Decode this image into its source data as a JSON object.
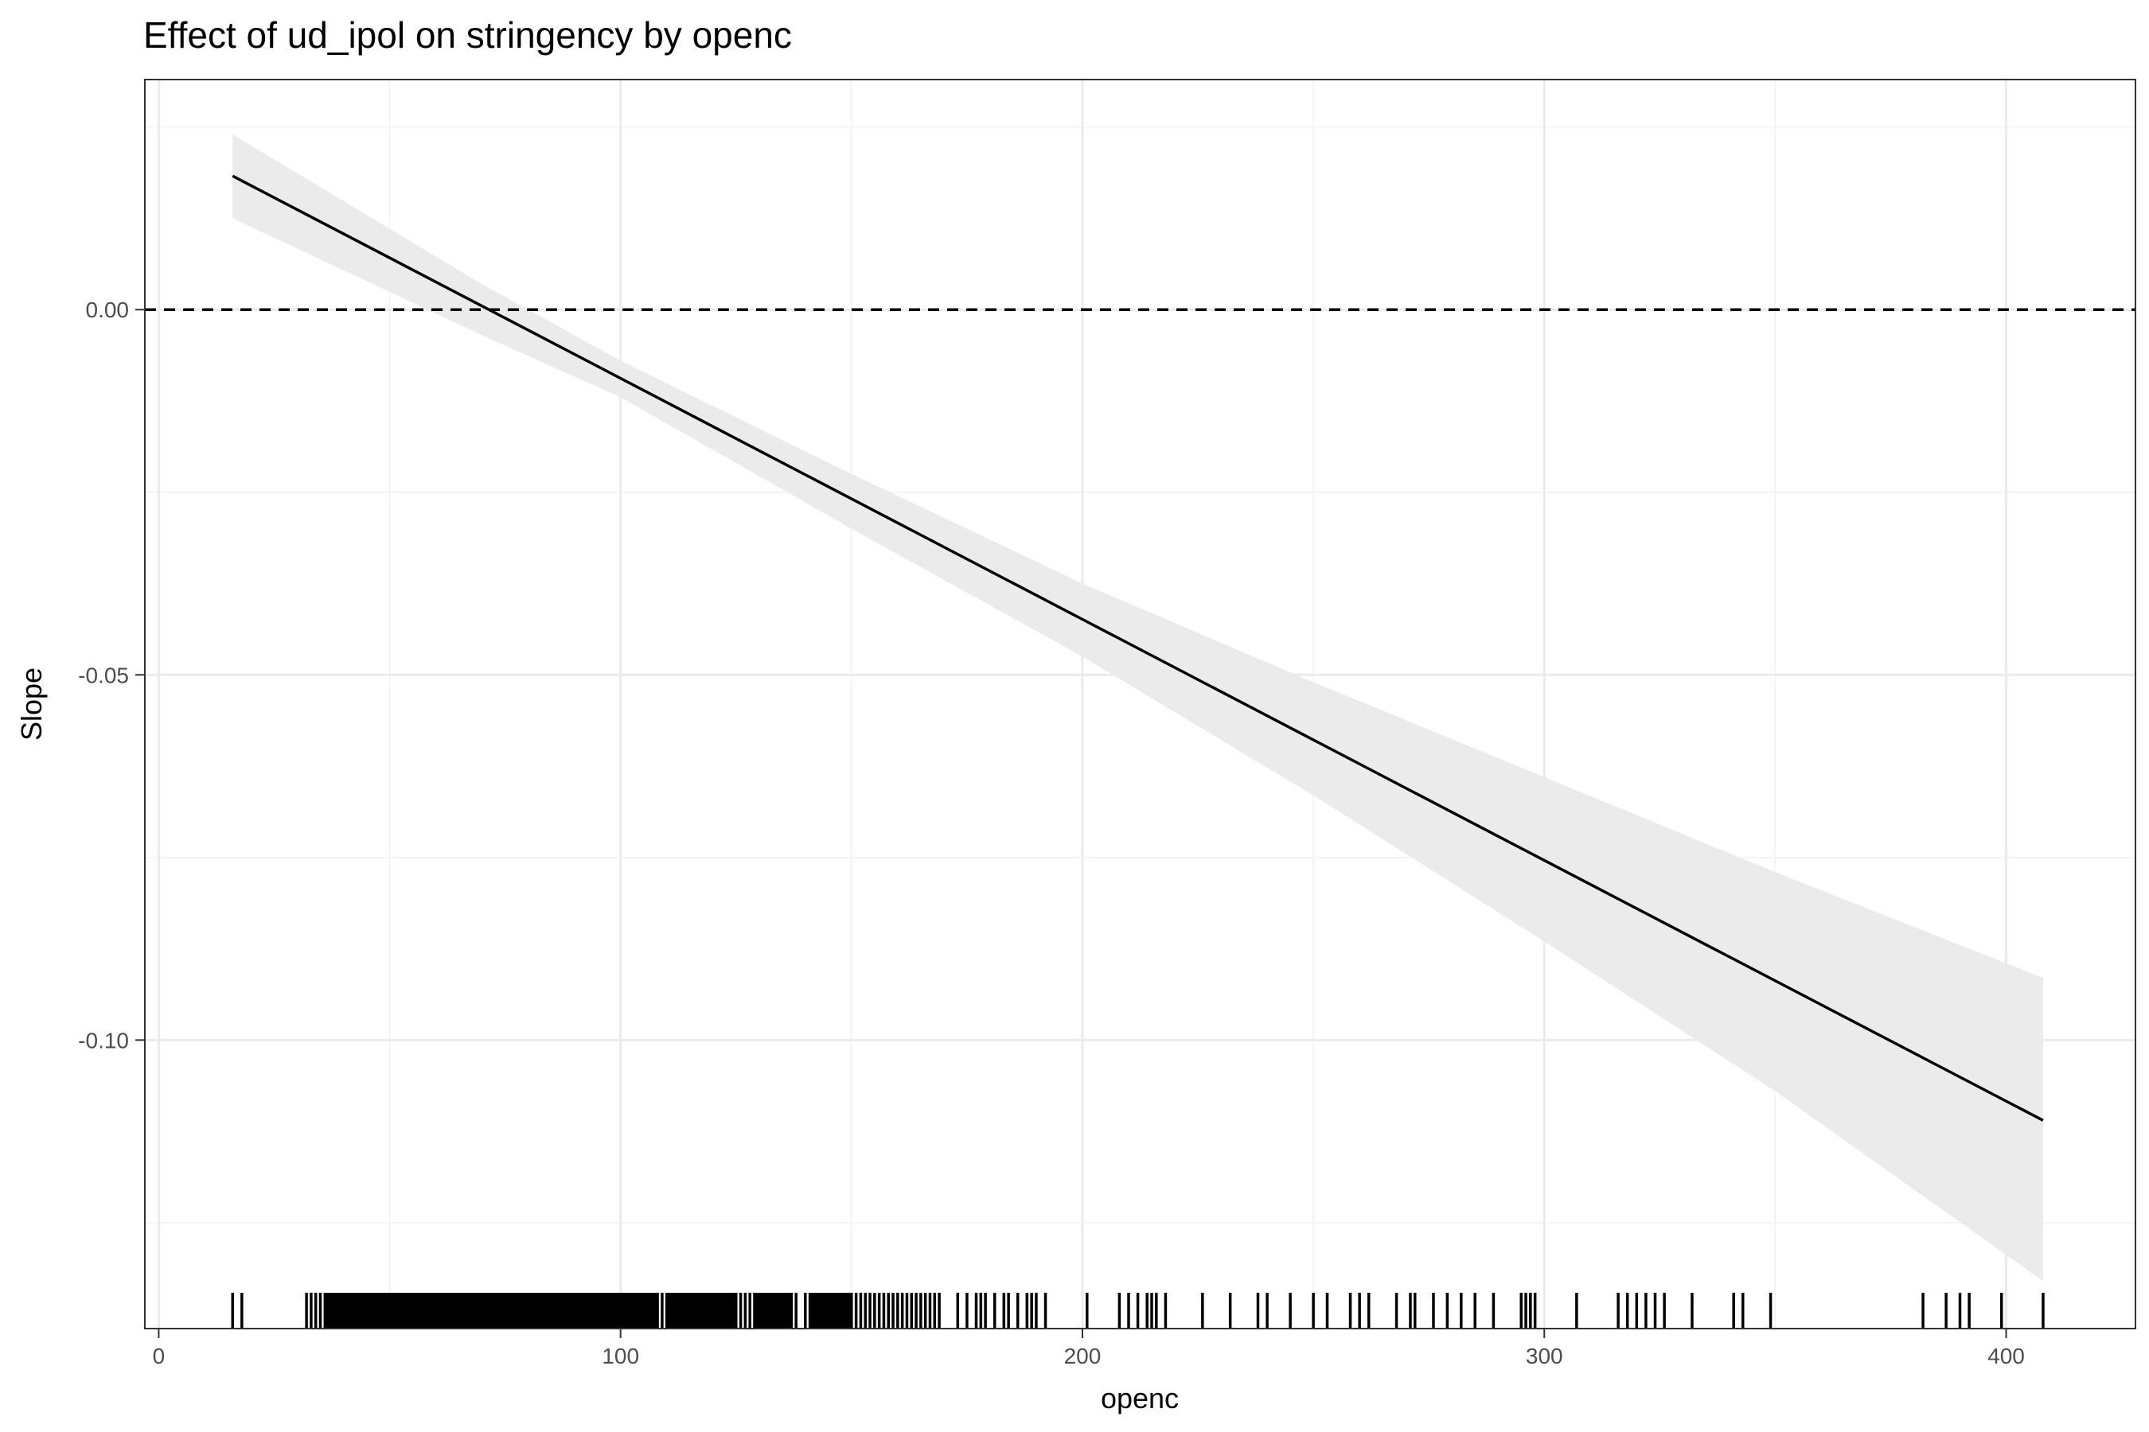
{
  "chart_data": {
    "type": "line",
    "title": "Effect of ud_ipol on stringency by openc",
    "xlabel": "openc",
    "ylabel": "Slope",
    "xlim": [
      -3,
      428
    ],
    "ylim": [
      -0.1395,
      0.0315
    ],
    "x_ticks": [
      0,
      100,
      200,
      300,
      400
    ],
    "x_tick_labels": [
      "0",
      "100",
      "200",
      "300",
      "400"
    ],
    "y_ticks": [
      0.0,
      -0.05,
      -0.1
    ],
    "y_tick_labels": [
      "0.00",
      "-0.05",
      "-0.10"
    ],
    "grid": true,
    "reference_line": {
      "y": 0,
      "style": "dashed",
      "color": "#000000"
    },
    "series": [
      {
        "x": [
          16,
          100,
          200,
          300,
          408
        ],
        "y": [
          0.0183,
          -0.0094,
          -0.0424,
          -0.0754,
          -0.111
        ],
        "color": "#000000"
      }
    ],
    "confidence_band": {
      "x": [
        16,
        70,
        100,
        150,
        200,
        250,
        300,
        350,
        408
      ],
      "upper": [
        0.024,
        0.0035,
        -0.007,
        -0.0225,
        -0.0375,
        -0.051,
        -0.064,
        -0.077,
        -0.0915
      ],
      "lower": [
        0.0125,
        -0.0035,
        -0.012,
        -0.03,
        -0.0475,
        -0.0665,
        -0.0865,
        -0.107,
        -0.133
      ],
      "color": "#ebebeb"
    },
    "rug": {
      "x": [
        16,
        18,
        32,
        33,
        34,
        35,
        36,
        36.5,
        37,
        37.5,
        38,
        38.5,
        39,
        39.5,
        40,
        40.5,
        41,
        41.5,
        42,
        42.5,
        43,
        43.5,
        44,
        44.5,
        45,
        45.5,
        46,
        46.5,
        47,
        47.5,
        48,
        48.5,
        49,
        49.5,
        50,
        50.5,
        51,
        51.5,
        52,
        52.5,
        53,
        53.5,
        54,
        54.5,
        55,
        55.5,
        56,
        56.5,
        57,
        57.5,
        58,
        58.5,
        59,
        59.5,
        60,
        60.5,
        61,
        61.5,
        62,
        62.5,
        63,
        63.5,
        64,
        64.5,
        65,
        65.5,
        66,
        66.5,
        67,
        67.5,
        68,
        68.5,
        69,
        69.5,
        70,
        70.5,
        71,
        71.5,
        72,
        72.5,
        73,
        73.5,
        74,
        74.5,
        75,
        75.5,
        76,
        76.5,
        77,
        77.5,
        78,
        78.5,
        79,
        79.5,
        80,
        80.5,
        81,
        81.5,
        82,
        82.5,
        83,
        83.5,
        84,
        84.5,
        85,
        85.5,
        86,
        86.5,
        87,
        87.5,
        88,
        88.5,
        89,
        89.5,
        90,
        90.5,
        91,
        91.5,
        92,
        92.5,
        93,
        93.5,
        94,
        94.5,
        95,
        95.5,
        96,
        96.5,
        97,
        97.5,
        98,
        98.5,
        99,
        99.5,
        100,
        100.5,
        101,
        101.5,
        102,
        102.5,
        103,
        103.5,
        104,
        104.5,
        105,
        105.5,
        106,
        106.5,
        107,
        107.5,
        108,
        109,
        110,
        110.5,
        111,
        111.5,
        112,
        112.5,
        113,
        113.5,
        114,
        114.5,
        115,
        115.5,
        116,
        116.5,
        117,
        117.5,
        118,
        118.5,
        119,
        119.5,
        120,
        120.5,
        121,
        121.5,
        122,
        122.5,
        123,
        123.5,
        124,
        124.5,
        125,
        126,
        127,
        128,
        129,
        129.5,
        130,
        130.5,
        131,
        131.5,
        132,
        132.5,
        133,
        133.5,
        134,
        134.5,
        135,
        135.5,
        136,
        136.5,
        137,
        138,
        140,
        141,
        141.5,
        142,
        142.5,
        143,
        143.5,
        144,
        144.5,
        145,
        145.5,
        146,
        146.5,
        147,
        147.5,
        148,
        148.5,
        149,
        149.5,
        150,
        151,
        152,
        153,
        154,
        155,
        156,
        157,
        158,
        159,
        160,
        161,
        162,
        163,
        164,
        165,
        166,
        167,
        168,
        169,
        173,
        175,
        177,
        178,
        179,
        181,
        183,
        184,
        186,
        188,
        189,
        190,
        192,
        201,
        208,
        210,
        212,
        214,
        215,
        216,
        218,
        226,
        232,
        238,
        240,
        245,
        250,
        253,
        258,
        260,
        262,
        268,
        271,
        272,
        276,
        279,
        282,
        285,
        289,
        295,
        296,
        297,
        298,
        307,
        316,
        318,
        320,
        322,
        324,
        326,
        332,
        341,
        343,
        349,
        382,
        387,
        390,
        392,
        399,
        408
      ],
      "color": "#000000"
    }
  }
}
